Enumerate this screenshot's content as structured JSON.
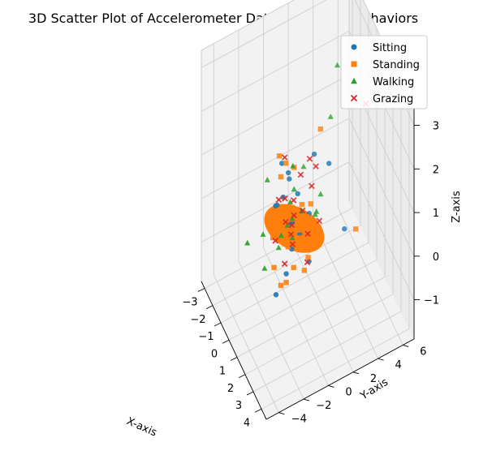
{
  "chart_data": {
    "type": "scatter",
    "projection": "3d",
    "title": "3D Scatter Plot of Accelerometer Data and Target Behaviors",
    "xlabel": "X-axis",
    "ylabel": "Y-axis",
    "zlabel": "Z-axis",
    "xlim": [
      -3.4,
      4.6
    ],
    "ylim": [
      -5.0,
      6.9
    ],
    "zlim": [
      -1.9,
      3.4
    ],
    "xticks": [
      "−3",
      "−2",
      "−1",
      "0",
      "1",
      "2",
      "3",
      "4"
    ],
    "yticks": [
      "−4",
      "−2",
      "0",
      "2",
      "4",
      "6"
    ],
    "zticks": [
      "−1",
      "0",
      "1",
      "2",
      "3"
    ],
    "grid": true,
    "legend_position": "top-right",
    "series": [
      {
        "name": "Sitting",
        "marker": "circle",
        "color": "#1f77b4",
        "points": [
          [
            0.0,
            0.0,
            0.0
          ],
          [
            0.3,
            0.5,
            -0.2
          ],
          [
            -0.4,
            0.8,
            0.4
          ],
          [
            0.6,
            -0.3,
            0.3
          ],
          [
            1.0,
            -0.6,
            -0.1
          ],
          [
            -1.4,
            0.7,
            0.5
          ],
          [
            -2.2,
            0.7,
            0.4
          ],
          [
            -1.9,
            1.1,
            0.1
          ],
          [
            -1.6,
            -0.2,
            -0.2
          ],
          [
            -0.2,
            2.0,
            1.2
          ],
          [
            1.0,
            2.4,
            1.4
          ],
          [
            2.6,
            2.6,
            0.5
          ],
          [
            1.4,
            -1.3,
            -0.4
          ],
          [
            0.9,
            -1.8,
            -1.0
          ],
          [
            -0.2,
            -0.5,
            0.6
          ],
          [
            0.4,
            1.2,
            0.2
          ],
          [
            -0.8,
            -0.6,
            0.2
          ],
          [
            1.6,
            0.4,
            -0.3
          ]
        ]
      },
      {
        "name": "Standing",
        "marker": "square",
        "color": "#ff7f0e",
        "points": [
          [
            0.0,
            0.0,
            0.1
          ],
          [
            0.2,
            -0.2,
            -0.1
          ],
          [
            0.5,
            0.3,
            0.0
          ],
          [
            -0.3,
            0.3,
            0.2
          ],
          [
            0.4,
            -0.5,
            -0.3
          ],
          [
            -0.8,
            2.9,
            1.4
          ],
          [
            -2.2,
            0.5,
            0.6
          ],
          [
            -1.7,
            0.7,
            0.6
          ],
          [
            -1.4,
            0.1,
            0.5
          ],
          [
            4.3,
            2.4,
            1.2
          ],
          [
            2.2,
            0.6,
            0.3
          ],
          [
            2.1,
            -0.3,
            -0.2
          ],
          [
            1.4,
            -1.3,
            -0.6
          ],
          [
            1.7,
            -0.9,
            -0.2
          ],
          [
            1.2,
            -1.6,
            -0.7
          ],
          [
            0.2,
            -1.5,
            -0.7
          ],
          [
            -0.6,
            -0.6,
            -0.5
          ],
          [
            0.9,
            0.7,
            0.4
          ],
          [
            -1.3,
            1.1,
            0.6
          ],
          [
            0.6,
            1.2,
            0.5
          ],
          [
            -0.2,
            1.0,
            0.2
          ],
          [
            1.0,
            -0.4,
            0.0
          ],
          [
            -0.4,
            -1.2,
            -0.3
          ],
          [
            1.8,
            0.2,
            -0.1
          ],
          [
            0.1,
            0.7,
            -0.4
          ]
        ]
      },
      {
        "name": "Walking",
        "marker": "triangle",
        "color": "#2ca02c",
        "points": [
          [
            0.0,
            0.1,
            0.1
          ],
          [
            -0.4,
            0.2,
            0.3
          ],
          [
            0.3,
            -0.1,
            -0.2
          ],
          [
            0.7,
            0.4,
            0.5
          ],
          [
            -0.3,
            -0.6,
            -0.3
          ],
          [
            -2.0,
            -0.6,
            0.3
          ],
          [
            -1.0,
            -1.6,
            -0.4
          ],
          [
            -1.4,
            -2.6,
            -0.6
          ],
          [
            0.9,
            2.6,
            2.4
          ],
          [
            1.3,
            1.2,
            0.6
          ],
          [
            -0.9,
            1.6,
            0.7
          ],
          [
            0.6,
            -0.7,
            0.3
          ],
          [
            -1.6,
            1.2,
            0.5
          ],
          [
            -0.2,
            -2.0,
            -0.8
          ],
          [
            1.6,
            0.9,
            0.7
          ],
          [
            -0.7,
            0.7,
            0.4
          ],
          [
            1.2,
            1.6,
            0.9
          ],
          [
            0.0,
            -1.0,
            -0.4
          ],
          [
            0.5,
            3.4,
            3.3
          ]
        ]
      },
      {
        "name": "Grazing",
        "marker": "x",
        "color": "#d62728",
        "points": [
          [
            0.1,
            0.0,
            0.0
          ],
          [
            -0.1,
            0.3,
            0.1
          ],
          [
            0.3,
            -0.2,
            -0.1
          ],
          [
            -0.2,
            -0.3,
            0.0
          ],
          [
            0.5,
            0.6,
            0.4
          ],
          [
            -0.6,
            0.6,
            0.2
          ],
          [
            0.8,
            -0.4,
            -0.1
          ],
          [
            -0.9,
            0.1,
            0.2
          ],
          [
            4.0,
            3.4,
            3.8
          ],
          [
            -2.0,
            0.8,
            0.6
          ],
          [
            2.0,
            0.0,
            -0.1
          ],
          [
            0.4,
            1.4,
            0.8
          ],
          [
            -0.4,
            -1.0,
            -0.4
          ],
          [
            1.3,
            0.5,
            0.2
          ],
          [
            -1.2,
            -0.2,
            0.1
          ],
          [
            0.9,
            -1.1,
            -0.4
          ],
          [
            1.8,
            1.1,
            0.6
          ],
          [
            -0.8,
            1.3,
            0.6
          ],
          [
            0.0,
            2.0,
            1.0
          ],
          [
            -0.3,
            1.7,
            1.1
          ]
        ]
      }
    ]
  }
}
